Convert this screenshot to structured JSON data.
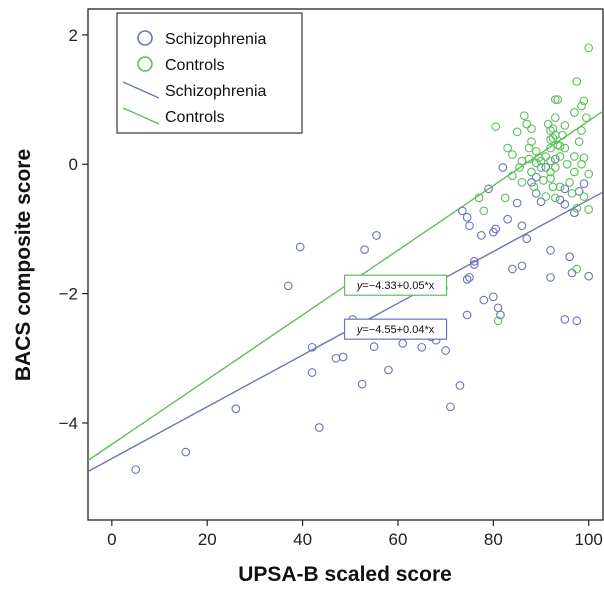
{
  "chart_data": {
    "type": "scatter",
    "xlabel": "UPSA-B scaled score",
    "ylabel": "BACS composite score",
    "xlim": [
      -5,
      103
    ],
    "ylim": [
      -5.5,
      2.4
    ],
    "xticks": [
      0,
      20,
      40,
      60,
      80,
      100
    ],
    "yticks": [
      -4,
      -2,
      0,
      2
    ],
    "grid": false,
    "legend": {
      "position": "top-left",
      "entries": [
        {
          "label": "Schizophrenia",
          "kind": "marker",
          "color": "#6b74b8"
        },
        {
          "label": "Controls",
          "kind": "marker",
          "color": "#5cbf5c"
        },
        {
          "label": "Schizophrenia",
          "kind": "line",
          "color": "#6b74b8"
        },
        {
          "label": "Controls",
          "kind": "line",
          "color": "#5cbf5c"
        }
      ]
    },
    "series": [
      {
        "name": "Schizophrenia",
        "color": "#6b74b8",
        "points": [
          [
            5,
            -4.72
          ],
          [
            15.5,
            -4.45
          ],
          [
            26,
            -3.78
          ],
          [
            37,
            -1.88
          ],
          [
            39.5,
            -1.28
          ],
          [
            42,
            -2.83
          ],
          [
            42,
            -3.22
          ],
          [
            43.5,
            -4.07
          ],
          [
            47,
            -3.0
          ],
          [
            48.5,
            -2.98
          ],
          [
            50,
            -2.45
          ],
          [
            52.5,
            -3.4
          ],
          [
            53,
            -1.32
          ],
          [
            55,
            -2.82
          ],
          [
            55.5,
            -1.1
          ],
          [
            58,
            -3.18
          ],
          [
            61,
            -2.77
          ],
          [
            64,
            -2.6
          ],
          [
            65,
            -2.83
          ],
          [
            67,
            -2.67
          ],
          [
            68,
            -2.72
          ],
          [
            68.5,
            -2.62
          ],
          [
            69.5,
            -1.92
          ],
          [
            70,
            -2.88
          ],
          [
            71,
            -3.75
          ],
          [
            73,
            -3.42
          ],
          [
            73.5,
            -0.72
          ],
          [
            74.5,
            -2.33
          ],
          [
            74.5,
            -0.82
          ],
          [
            74.5,
            -1.78
          ],
          [
            75,
            -0.95
          ],
          [
            75,
            -1.75
          ],
          [
            76,
            -1.5
          ],
          [
            76,
            -1.55
          ],
          [
            77.5,
            -1.1
          ],
          [
            78,
            -2.1
          ],
          [
            79,
            -0.38
          ],
          [
            80,
            -1.05
          ],
          [
            80,
            -2.05
          ],
          [
            80.5,
            -1.0
          ],
          [
            81,
            -2.22
          ],
          [
            81.5,
            -2.33
          ],
          [
            82,
            -0.05
          ],
          [
            83,
            -0.85
          ],
          [
            84,
            -1.62
          ],
          [
            85,
            -0.6
          ],
          [
            86,
            -0.95
          ],
          [
            86,
            -1.57
          ],
          [
            87,
            -1.15
          ],
          [
            88,
            -0.28
          ],
          [
            89,
            -0.2
          ],
          [
            89,
            -0.45
          ],
          [
            90,
            -0.58
          ],
          [
            91,
            -0.05
          ],
          [
            92,
            -1.33
          ],
          [
            92,
            -1.75
          ],
          [
            93,
            0.08
          ],
          [
            94,
            -0.55
          ],
          [
            95,
            -0.38
          ],
          [
            95,
            -0.62
          ],
          [
            95,
            -2.4
          ],
          [
            96,
            -1.43
          ],
          [
            96.5,
            -1.68
          ],
          [
            97,
            -0.75
          ],
          [
            97.5,
            -2.42
          ],
          [
            98,
            -0.42
          ],
          [
            99,
            -0.3
          ],
          [
            100,
            -1.73
          ],
          [
            50.5,
            -2.4
          ]
        ]
      },
      {
        "name": "Controls",
        "color": "#5cbf5c",
        "points": [
          [
            68.5,
            -1.87
          ],
          [
            77,
            -0.52
          ],
          [
            78,
            -0.72
          ],
          [
            80.5,
            0.58
          ],
          [
            81,
            -2.42
          ],
          [
            82.5,
            -0.52
          ],
          [
            83,
            0.25
          ],
          [
            84,
            0.15
          ],
          [
            84,
            -0.18
          ],
          [
            85,
            0.5
          ],
          [
            85.5,
            -0.05
          ],
          [
            86,
            0.05
          ],
          [
            86,
            -0.28
          ],
          [
            86.5,
            0.75
          ],
          [
            87,
            0.62
          ],
          [
            87.5,
            0.25
          ],
          [
            87.5,
            0.08
          ],
          [
            88,
            0.55
          ],
          [
            88,
            0.35
          ],
          [
            88,
            -0.12
          ],
          [
            88.5,
            -0.35
          ],
          [
            89,
            0.2
          ],
          [
            89,
            0.02
          ],
          [
            89.5,
            0.1
          ],
          [
            90,
            0.05
          ],
          [
            90,
            -0.05
          ],
          [
            90.5,
            -0.25
          ],
          [
            91,
            0.12
          ],
          [
            91,
            -0.5
          ],
          [
            91.5,
            0.62
          ],
          [
            92,
            0.52
          ],
          [
            92,
            0.38
          ],
          [
            92,
            0.25
          ],
          [
            92,
            0.05
          ],
          [
            92,
            -0.12
          ],
          [
            92,
            -0.22
          ],
          [
            92.5,
            0.55
          ],
          [
            92.5,
            0.4
          ],
          [
            92.5,
            -0.35
          ],
          [
            93,
            1.0
          ],
          [
            93,
            0.72
          ],
          [
            93,
            0.45
          ],
          [
            93,
            -0.05
          ],
          [
            93,
            -0.52
          ],
          [
            93.5,
            1.0
          ],
          [
            93.5,
            0.3
          ],
          [
            94,
            0.28
          ],
          [
            94,
            0.12
          ],
          [
            94,
            -0.35
          ],
          [
            94.5,
            0.45
          ],
          [
            95,
            0.6
          ],
          [
            95,
            0.25
          ],
          [
            95.5,
            0.0
          ],
          [
            96,
            -0.28
          ],
          [
            96.5,
            -0.45
          ],
          [
            97,
            0.8
          ],
          [
            97,
            0.12
          ],
          [
            97,
            -0.12
          ],
          [
            97.5,
            1.28
          ],
          [
            97.5,
            -0.68
          ],
          [
            97.5,
            -1.62
          ],
          [
            98,
            0.35
          ],
          [
            98.5,
            0.9
          ],
          [
            98.5,
            0.52
          ],
          [
            98.5,
            0.0
          ],
          [
            99,
            0.98
          ],
          [
            99,
            0.1
          ],
          [
            99,
            -0.5
          ],
          [
            99.5,
            0.72
          ],
          [
            100,
            -0.15
          ],
          [
            100,
            -0.7
          ],
          [
            100,
            1.8
          ]
        ]
      }
    ],
    "fit_lines": [
      {
        "name": "Schizophrenia",
        "color": "#6b74b8",
        "intercept": -4.55,
        "slope": 0.04,
        "equation": "y=−4.55+0.04*x",
        "label_at": [
          59.5,
          -2.55
        ]
      },
      {
        "name": "Controls",
        "color": "#5cbf5c",
        "intercept": -4.33,
        "slope": 0.05,
        "equation": "y=−4.33+0.05*x",
        "label_at": [
          59.5,
          -1.87
        ]
      }
    ]
  }
}
